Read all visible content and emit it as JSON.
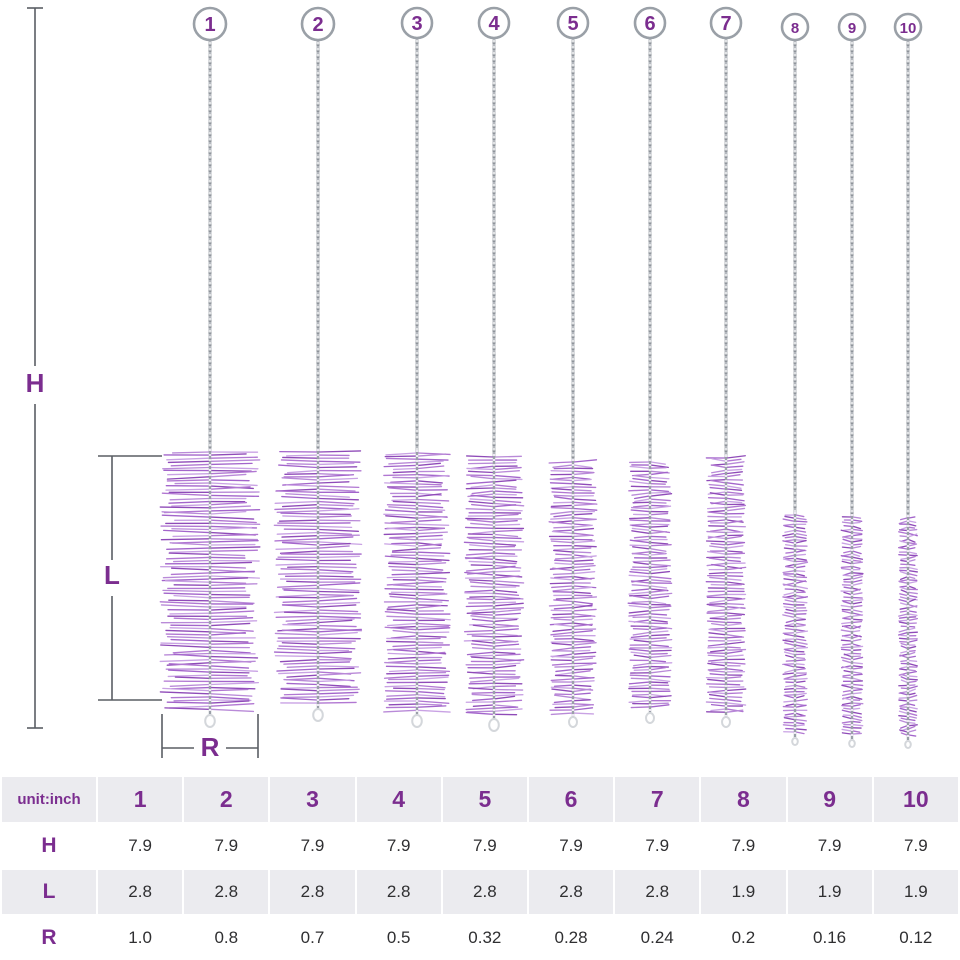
{
  "accent": "#7b2d8f",
  "wire_color": "#b3b7bd",
  "wire_dark": "#8f949b",
  "dim_line_color": "#5a5e64",
  "table_row_gray": "#ebebef",
  "bristle_colors": [
    "#b98ad8",
    "#a365cb",
    "#c9a2e4",
    "#8f4bb8",
    "#b177d2"
  ],
  "diagram": {
    "height_label": "H",
    "length_label": "L",
    "radius_label": "R",
    "brush_numbers": [
      "1",
      "2",
      "3",
      "4",
      "5",
      "6",
      "7",
      "8",
      "9",
      "10"
    ]
  },
  "table": {
    "unit_label": "unit:inch",
    "column_headers": [
      "1",
      "2",
      "3",
      "4",
      "5",
      "6",
      "7",
      "8",
      "9",
      "10"
    ],
    "rows": [
      {
        "label": "H",
        "values": [
          "7.9",
          "7.9",
          "7.9",
          "7.9",
          "7.9",
          "7.9",
          "7.9",
          "7.9",
          "7.9",
          "7.9"
        ]
      },
      {
        "label": "L",
        "values": [
          "2.8",
          "2.8",
          "2.8",
          "2.8",
          "2.8",
          "2.8",
          "2.8",
          "1.9",
          "1.9",
          "1.9"
        ]
      },
      {
        "label": "R",
        "values": [
          "1.0",
          "0.8",
          "0.7",
          "0.5",
          "0.32",
          "0.28",
          "0.24",
          "0.2",
          "0.16",
          "0.12"
        ]
      }
    ]
  }
}
